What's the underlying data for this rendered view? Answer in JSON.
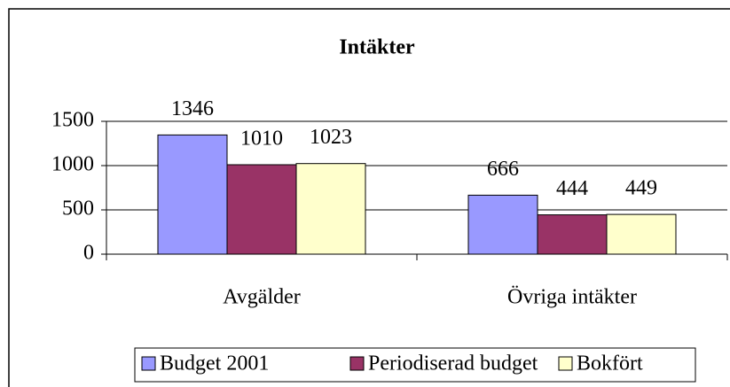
{
  "chart_data": {
    "type": "bar",
    "title": "Intäkter",
    "categories": [
      "Avgälder",
      "Övriga intäkter"
    ],
    "series": [
      {
        "name": "Budget 2001",
        "color": "#9999ff",
        "values": [
          1346,
          666
        ]
      },
      {
        "name": "Periodiserad budget",
        "color": "#993366",
        "values": [
          1010,
          444
        ]
      },
      {
        "name": "Bokfört",
        "color": "#ffffcc",
        "values": [
          1023,
          449
        ]
      }
    ],
    "ylim": [
      0,
      1500
    ],
    "yticks": [
      0,
      500,
      1000,
      1500
    ],
    "grid": true,
    "legend": "bottom"
  }
}
